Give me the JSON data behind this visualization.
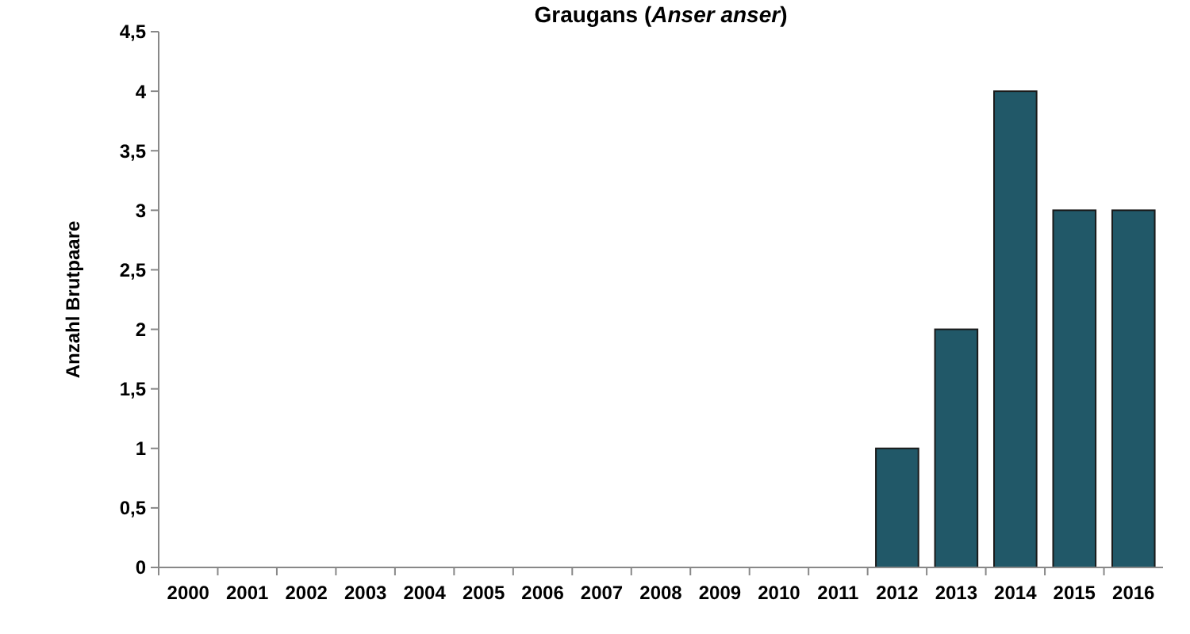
{
  "chart_data": {
    "type": "bar",
    "title": "Graugans (Anser anser)",
    "ylabel": "Anzahl Brutpaare",
    "categories": [
      "2000",
      "2001",
      "2002",
      "2003",
      "2004",
      "2005",
      "2006",
      "2007",
      "2008",
      "2009",
      "2010",
      "2011",
      "2012",
      "2013",
      "2014",
      "2015",
      "2016"
    ],
    "values": [
      0,
      0,
      0,
      0,
      0,
      0,
      0,
      0,
      0,
      0,
      0,
      0,
      1,
      2,
      4,
      3,
      3
    ],
    "color": "#215868",
    "ylim": [
      0,
      4.5
    ],
    "yticks": [
      0,
      {
        "value": 0.5,
        "label": "0,5"
      },
      1,
      {
        "value": 1.5,
        "label": "1,5"
      },
      2,
      {
        "value": 2.5,
        "label": "2,5"
      },
      3,
      {
        "value": 3.5,
        "label": "3,5"
      },
      4,
      {
        "value": 4.5,
        "label": "4,5"
      }
    ],
    "grid": false
  }
}
